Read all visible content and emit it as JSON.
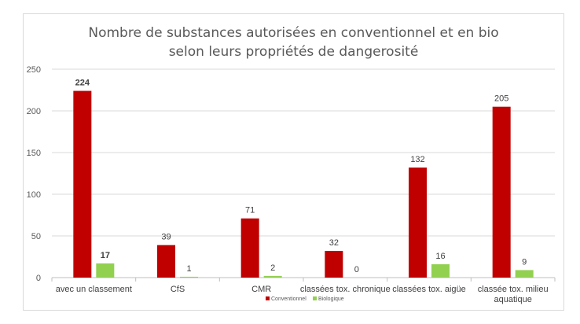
{
  "chart_data": {
    "type": "bar",
    "title_lines": [
      "Nombre de substances autorisées en conventionnel et en bio",
      "selon leurs propriétés de dangerosité"
    ],
    "categories": [
      [
        "avec un classement"
      ],
      [
        "CfS"
      ],
      [
        "CMR"
      ],
      [
        "classées tox. chronique"
      ],
      [
        "classées tox. aigüe"
      ],
      [
        "classée tox. milieu",
        "aquatique"
      ]
    ],
    "series": [
      {
        "name": "Conventionnel",
        "values": [
          224,
          39,
          71,
          32,
          132,
          205
        ],
        "color": "#c00000"
      },
      {
        "name": "Biologique",
        "values": [
          17,
          1,
          2,
          0,
          16,
          9
        ],
        "color": "#92d050"
      }
    ],
    "data_labels": {
      "Conventionnel": [
        "224",
        "39",
        "71",
        "32",
        "132",
        "205"
      ],
      "Biologique": [
        "17",
        "1",
        "2",
        "0",
        "16",
        "9"
      ]
    },
    "highlighted_labels": [
      {
        "series": 0,
        "index": 0,
        "color": "#c00000"
      },
      {
        "series": 1,
        "index": 0,
        "color": "#404040"
      }
    ],
    "y_ticks": [
      "0",
      "50",
      "100",
      "150",
      "200",
      "250"
    ],
    "ylim": [
      0,
      250
    ],
    "grid": true,
    "legend_position": "bottom"
  }
}
